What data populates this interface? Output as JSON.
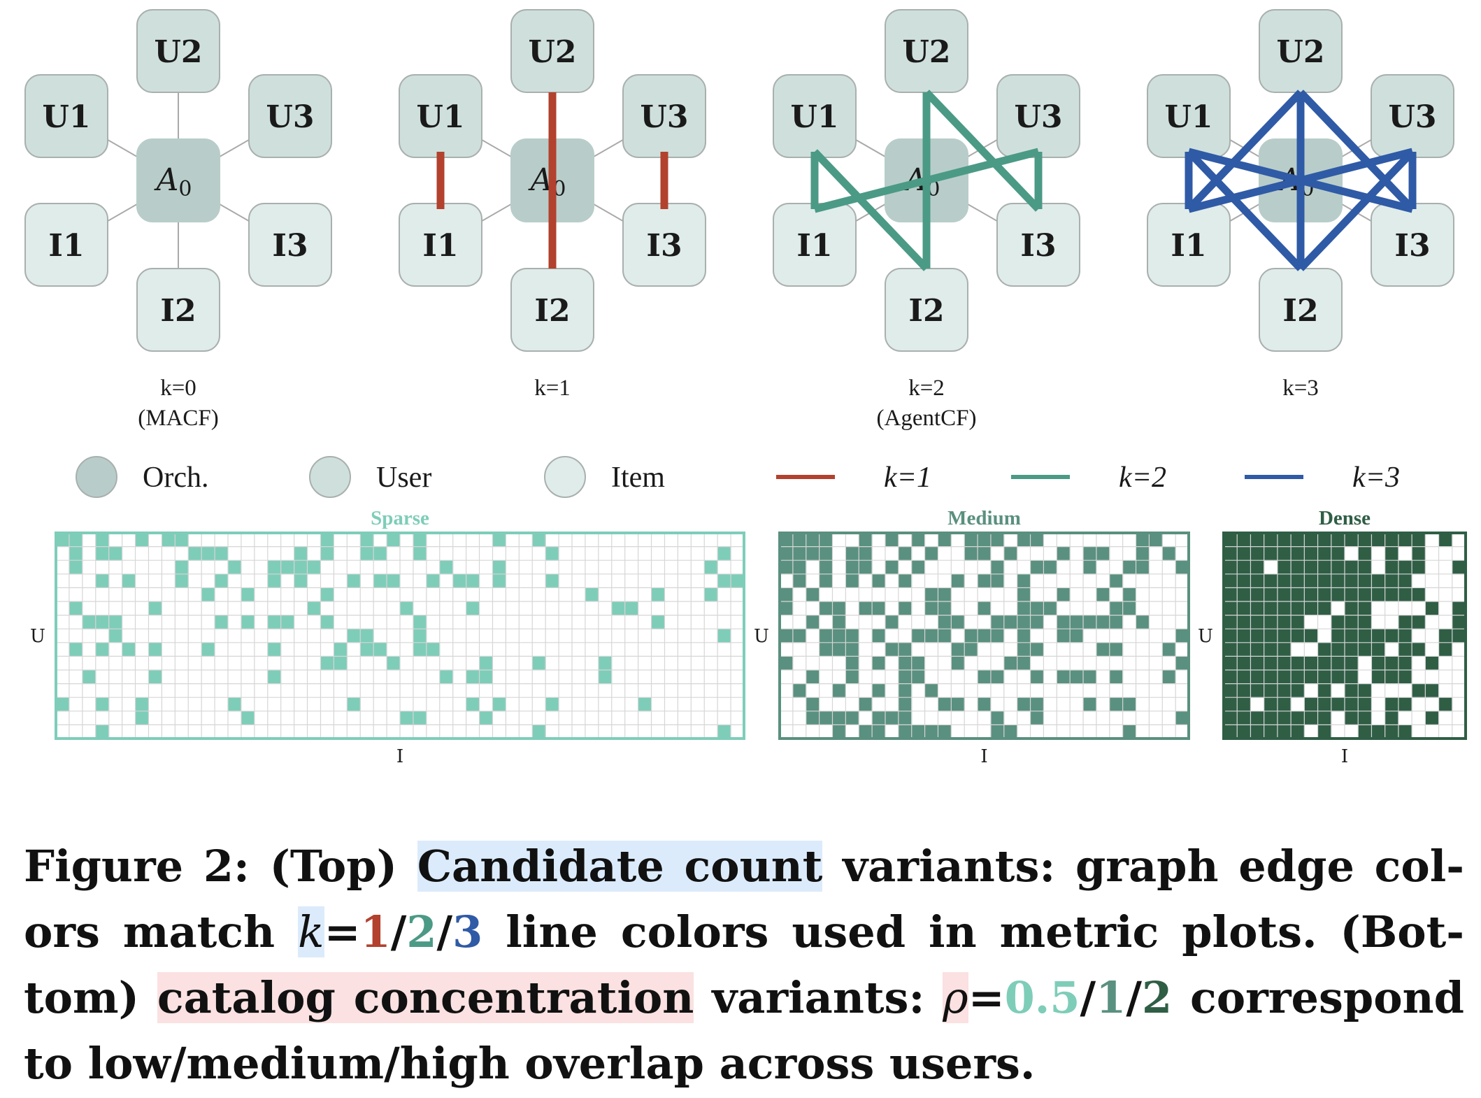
{
  "panels": [
    {
      "k_label": "k=0",
      "variant": "(MACF)",
      "k": 0
    },
    {
      "k_label": "k=1",
      "variant": "",
      "k": 1
    },
    {
      "k_label": "k=2",
      "variant": "(AgentCF)",
      "k": 2
    },
    {
      "k_label": "k=3",
      "variant": "",
      "k": 3
    }
  ],
  "nodes": {
    "orchestrator": "A",
    "orchestrator_sub": "0",
    "users": [
      "U1",
      "U2",
      "U3"
    ],
    "items": [
      "I1",
      "I2",
      "I3"
    ]
  },
  "legend": {
    "orch": "Orch.",
    "user": "User",
    "item": "Item",
    "k1": "k=1",
    "k2": "k=2",
    "k3": "k=3"
  },
  "colors": {
    "k1": "#b2412e",
    "k2": "#4b9a85",
    "k3": "#2f5aa6",
    "orch_fill": "#b8cdc9",
    "user_fill": "#cfe0dc",
    "item_fill": "#e0ecea",
    "sparse": "#7ecdb9",
    "medium": "#5a907f",
    "dense": "#2f5e45"
  },
  "grids": [
    {
      "title": "Sparse",
      "cols": 52,
      "rows": 15,
      "density": 0.16,
      "seed": 11,
      "xlabel": "I",
      "ylabel": "U"
    },
    {
      "title": "Medium",
      "cols": 31,
      "rows": 15,
      "density": 0.34,
      "seed": 23,
      "xlabel": "I",
      "ylabel": "U"
    },
    {
      "title": "Dense",
      "cols": 18,
      "rows": 15,
      "density": 0.72,
      "seed": 37,
      "xlabel": "I",
      "ylabel": "U"
    }
  ],
  "caption": {
    "p1": "Figure 2: (Top) ",
    "p2": "Candidate count",
    "p3": " variants: graph edge col- ors match ",
    "p4": "k",
    "p5": "=",
    "p6": "1",
    "p7": "/",
    "p8": "2",
    "p9": "/",
    "p10": "3",
    "p11": " line colors used in metric plots. (Bot- tom) ",
    "p12": "catalog concentration",
    "p13": " variants: ",
    "p14": "ρ",
    "p15": "=",
    "p16": "0.5",
    "p17": "/",
    "p18": "1",
    "p19": "/",
    "p20": "2",
    "p21": " correspond to low/medium/high overlap across users."
  }
}
